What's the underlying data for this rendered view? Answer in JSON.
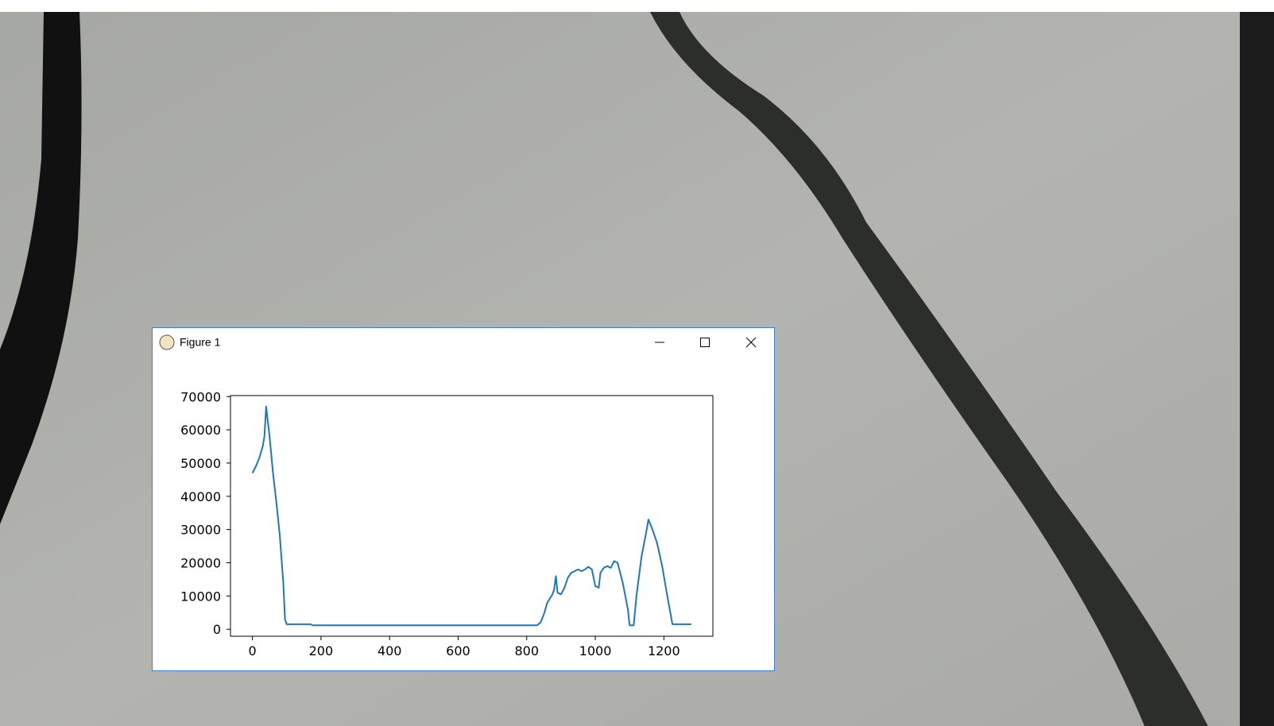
{
  "window": {
    "title": "Figure 1"
  },
  "chart_data": {
    "type": "line",
    "x": [
      0,
      10,
      20,
      30,
      35,
      40,
      50,
      60,
      70,
      80,
      90,
      95,
      100,
      170,
      175,
      830,
      840,
      850,
      860,
      875,
      880,
      885,
      890,
      900,
      910,
      920,
      930,
      940,
      950,
      960,
      970,
      980,
      990,
      1000,
      1010,
      1015,
      1025,
      1035,
      1045,
      1055,
      1065,
      1080,
      1095,
      1100,
      1112,
      1120,
      1135,
      1150,
      1155,
      1165,
      1180,
      1195,
      1210,
      1225,
      1280
    ],
    "series": [
      {
        "color": "#1f77b4",
        "values": [
          47000,
          49000,
          51500,
          55000,
          58000,
          67000,
          58000,
          47000,
          38000,
          28000,
          14000,
          3000,
          1500,
          1500,
          1200,
          1200,
          2000,
          4500,
          8000,
          10500,
          12000,
          16000,
          11000,
          10500,
          12500,
          15500,
          17000,
          17500,
          18000,
          17500,
          18000,
          18800,
          18000,
          13000,
          12500,
          17000,
          18500,
          19000,
          18500,
          20500,
          20000,
          14000,
          6000,
          1200,
          1200,
          10000,
          22000,
          30000,
          33000,
          30500,
          26000,
          19000,
          10000,
          1500,
          1500
        ]
      }
    ],
    "xlim": [
      -64,
      1343
    ],
    "ylim": [
      -2100,
      70300
    ],
    "xticks": [
      0,
      200,
      400,
      600,
      800,
      1000,
      1200
    ],
    "yticks": [
      0,
      10000,
      20000,
      30000,
      40000,
      50000,
      60000,
      70000
    ]
  }
}
